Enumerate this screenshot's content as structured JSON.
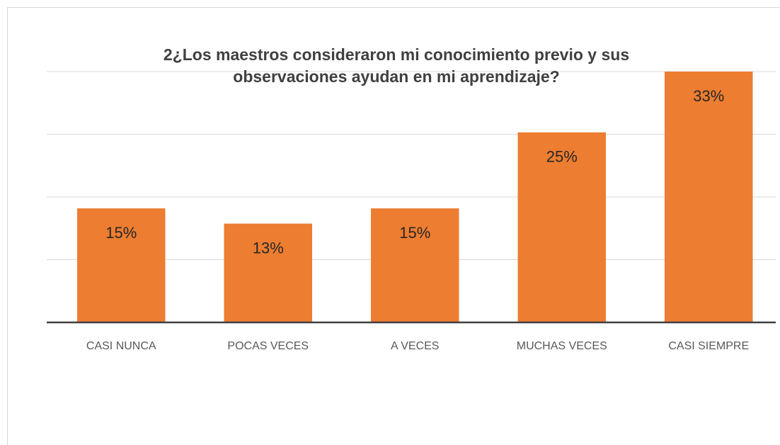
{
  "chart_data": {
    "type": "bar",
    "title": "2¿Los maestros consideraron mi conocimiento previo y sus observaciones ayudan en mi aprendizaje?",
    "categories": [
      "CASI NUNCA",
      "POCAS VECES",
      "A VECES",
      "MUCHAS VECES",
      "CASI SIEMPRE"
    ],
    "values": [
      15,
      13,
      15,
      25,
      33
    ],
    "value_labels": [
      "15%",
      "13%",
      "15%",
      "25%",
      "33%"
    ],
    "color": "#ed7d31",
    "ylim": [
      0,
      33
    ],
    "yticks": [
      0,
      8.25,
      16.5,
      24.75,
      33
    ],
    "grid": true
  }
}
